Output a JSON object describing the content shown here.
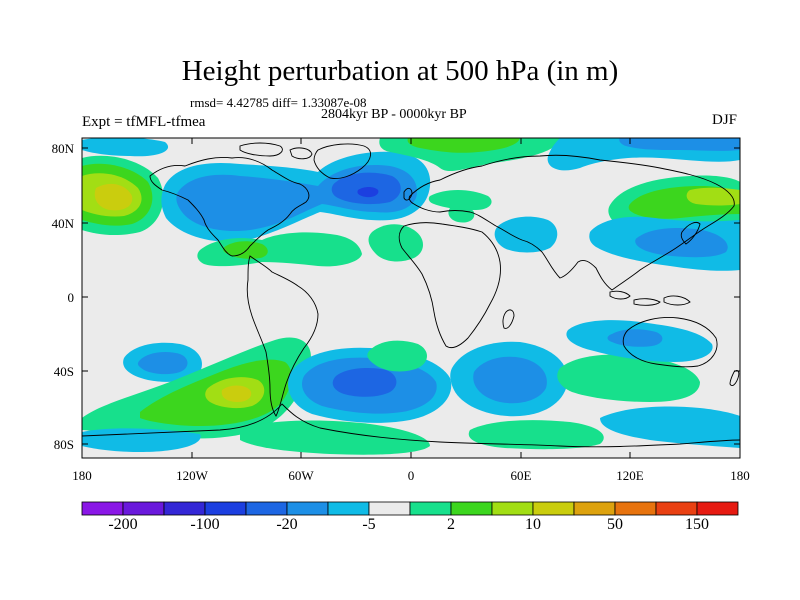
{
  "title": "Height perturbation at 500 hPa (in m)",
  "stats": "rmsd= 4.42785 diff= 1.33087e-08",
  "period": "2804kyr BP - 0000kyr BP",
  "experiment": "Expt = tfMFL-tfmea",
  "season": "DJF",
  "lat_ticks": [
    "80N",
    "40N",
    "0",
    "40S",
    "80S"
  ],
  "lon_ticks": [
    "180",
    "120W",
    "60W",
    "0",
    "60E",
    "120E",
    "180"
  ],
  "colorbar": {
    "colors": [
      "#8a17e6",
      "#6a19dc",
      "#3427d6",
      "#1c3fe0",
      "#1d66e3",
      "#1d8fe6",
      "#10bbe6",
      "#ebebeb",
      "#17e08c",
      "#3cd61e",
      "#a2de14",
      "#cacd0e",
      "#dda20e",
      "#e7730e",
      "#e94012",
      "#e61a11"
    ],
    "labels": [
      "-200",
      "-100",
      "-20",
      "-5",
      "2",
      "10",
      "50",
      "150"
    ]
  },
  "colors": {
    "background": "#ebebeb",
    "light_blue": "#10bbe6",
    "blue": "#1d8fe6",
    "mid_blue": "#1d66e3",
    "deep_blue": "#1c3fe0",
    "light_green": "#17e08c",
    "green": "#3cd61e",
    "yellow_green": "#a2de14",
    "yellow": "#cacd0e"
  }
}
